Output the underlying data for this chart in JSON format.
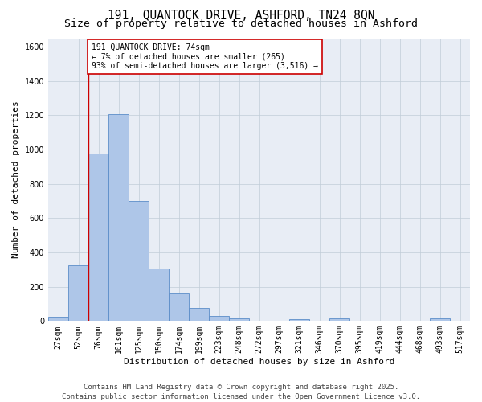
{
  "title": "191, QUANTOCK DRIVE, ASHFORD, TN24 8QN",
  "subtitle": "Size of property relative to detached houses in Ashford",
  "xlabel": "Distribution of detached houses by size in Ashford",
  "ylabel": "Number of detached properties",
  "bin_labels": [
    "27sqm",
    "52sqm",
    "76sqm",
    "101sqm",
    "125sqm",
    "150sqm",
    "174sqm",
    "199sqm",
    "223sqm",
    "248sqm",
    "272sqm",
    "297sqm",
    "321sqm",
    "346sqm",
    "370sqm",
    "395sqm",
    "419sqm",
    "444sqm",
    "468sqm",
    "493sqm",
    "517sqm"
  ],
  "bar_heights": [
    25,
    325,
    975,
    1205,
    700,
    305,
    160,
    75,
    30,
    15,
    0,
    0,
    10,
    0,
    15,
    0,
    0,
    0,
    0,
    15,
    0
  ],
  "bar_color": "#aec6e8",
  "bar_edge_color": "#5b8dc8",
  "vline_color": "#cc0000",
  "annotation_text": "191 QUANTOCK DRIVE: 74sqm\n← 7% of detached houses are smaller (265)\n93% of semi-detached houses are larger (3,516) →",
  "annotation_box_color": "#ffffff",
  "annotation_box_edge": "#cc0000",
  "ylim": [
    0,
    1650
  ],
  "yticks": [
    0,
    200,
    400,
    600,
    800,
    1000,
    1200,
    1400,
    1600
  ],
  "grid_color": "#c0ccd8",
  "bg_color": "#e8edf5",
  "footer": "Contains HM Land Registry data © Crown copyright and database right 2025.\nContains public sector information licensed under the Open Government Licence v3.0.",
  "title_fontsize": 10.5,
  "subtitle_fontsize": 9.5,
  "label_fontsize": 8,
  "tick_fontsize": 7,
  "annot_fontsize": 7,
  "footer_fontsize": 6.5
}
